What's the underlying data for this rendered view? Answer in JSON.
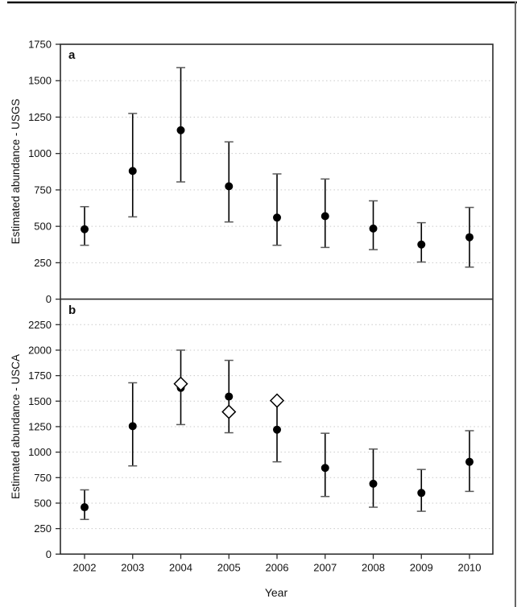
{
  "colors": {
    "marker": "#000000",
    "error_bar": "#000000",
    "error_cap": "#5a5a5a",
    "grid": "#c9c9c9",
    "frame": "#2b2b2b",
    "text": "#111111",
    "top_border": "#111111",
    "right_border": "#666666"
  },
  "chart_data": [
    {
      "type": "scatter",
      "panel_label": "a",
      "ylabel": "Estimated abundance - USGS",
      "xlabel": "",
      "ylim": [
        0,
        1750
      ],
      "yticks": [
        0,
        250,
        500,
        750,
        1000,
        1250,
        1500,
        1750
      ],
      "grid": "horizontal-dotted",
      "legend": "none",
      "x": [
        2002,
        2003,
        2004,
        2005,
        2006,
        2007,
        2008,
        2009,
        2010
      ],
      "series": [
        {
          "name": "USGS abundance estimate with 95% CI",
          "marker": "filled-circle",
          "x": [
            2002,
            2003,
            2004,
            2005,
            2006,
            2007,
            2008,
            2009,
            2010
          ],
          "y": [
            480,
            880,
            1160,
            775,
            560,
            570,
            485,
            375,
            425
          ],
          "ci_low": [
            370,
            565,
            805,
            530,
            370,
            355,
            340,
            255,
            220
          ],
          "ci_high": [
            635,
            1275,
            1590,
            1080,
            860,
            825,
            675,
            525,
            630
          ]
        }
      ]
    },
    {
      "type": "scatter",
      "panel_label": "b",
      "ylabel": "Estimated abundance - USCA",
      "xlabel": "Year",
      "ylim": [
        0,
        2500
      ],
      "yticks": [
        0,
        250,
        500,
        750,
        1000,
        1250,
        1500,
        1750,
        2000,
        2250
      ],
      "grid": "horizontal-dotted",
      "legend": "none",
      "x": [
        2002,
        2003,
        2004,
        2005,
        2006,
        2007,
        2008,
        2009,
        2010
      ],
      "series": [
        {
          "name": "USCA abundance estimate with 95% CI",
          "marker": "filled-circle",
          "x": [
            2002,
            2003,
            2004,
            2005,
            2006,
            2007,
            2008,
            2009,
            2010
          ],
          "y": [
            460,
            1255,
            1630,
            1545,
            1220,
            845,
            690,
            600,
            905
          ],
          "ci_low": [
            340,
            865,
            1270,
            1190,
            905,
            565,
            460,
            420,
            615
          ],
          "ci_high": [
            630,
            1680,
            2000,
            1900,
            1520,
            1185,
            1030,
            830,
            1210
          ]
        },
        {
          "name": "alternate estimate (open diamond)",
          "marker": "open-diamond",
          "x": [
            2004,
            2005,
            2006
          ],
          "y": [
            1670,
            1395,
            1505
          ]
        }
      ]
    }
  ]
}
